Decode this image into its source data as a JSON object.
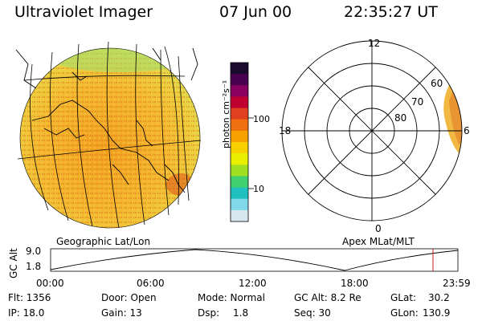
{
  "header": {
    "title": "Ultraviolet Imager",
    "date": "07 Jun 00",
    "time": "22:35:27 UT"
  },
  "left_panel": {
    "caption": "Geographic Lat/Lon"
  },
  "right_panel": {
    "caption": "Apex MLat/MLT",
    "mlt_labels": {
      "top": "12",
      "left": "18",
      "right": "6",
      "bottom": "0"
    },
    "lat_labels": [
      "80",
      "70",
      "60"
    ]
  },
  "colorbar": {
    "unit_label": "photon cm⁻²s⁻¹",
    "ticks": [
      "100",
      "10"
    ],
    "colors": [
      "#1a0a2e",
      "#4a0050",
      "#8a0060",
      "#c00030",
      "#e04020",
      "#f07010",
      "#f8a000",
      "#f8d000",
      "#e8f000",
      "#a0e020",
      "#40d070",
      "#20c0c0",
      "#80d8e8",
      "#d8e8ef"
    ]
  },
  "altitude_plot": {
    "axis_label": "GC Alt",
    "y_ticks": [
      "9.0",
      "1.8"
    ],
    "x_ticks": [
      "00:00",
      "06:00",
      "12:00",
      "18:00",
      "23:59"
    ],
    "cursor_color": "#c02020"
  },
  "status": {
    "flt": "Flt: 1356",
    "ip": "IP: 18.0",
    "door": "Door: Open",
    "gain": "Gain: 13",
    "mode": "Mode: Normal",
    "dsp": "Dsp:",
    "dsp_value": "1.8",
    "gc_alt": "GC Alt: 8.2 Re",
    "seq": "Seq: 30",
    "glat": "GLat:",
    "glat_value": "30.2",
    "glon": "GLon:",
    "glon_value": "130.9"
  }
}
